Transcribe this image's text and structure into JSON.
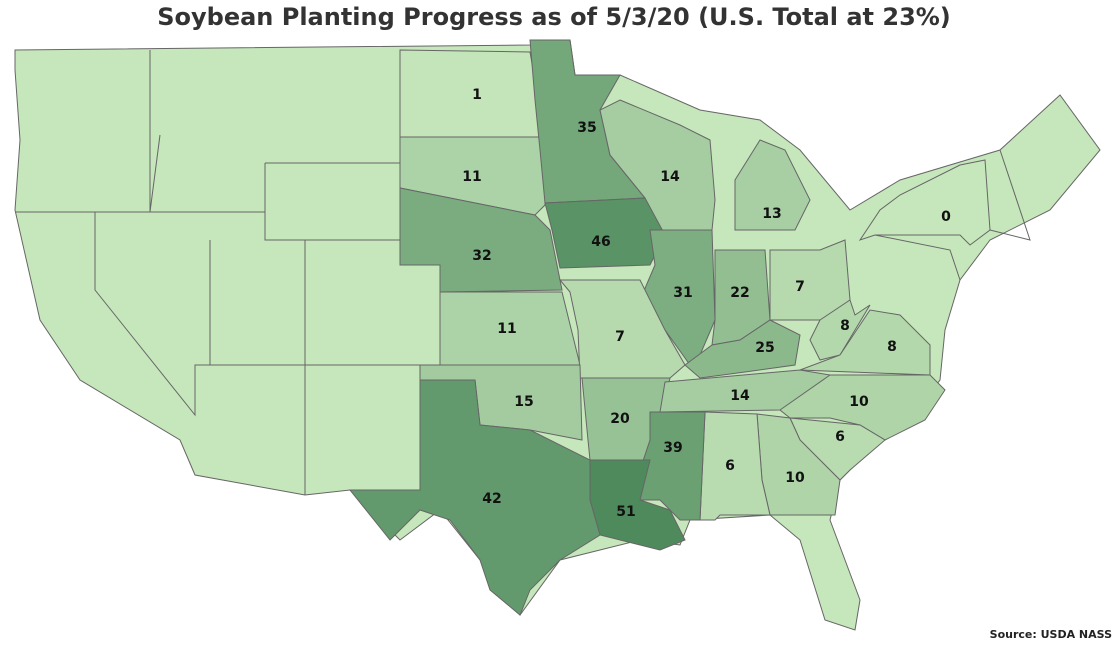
{
  "title": "Soybean Planting Progress as of 5/3/20 (U.S. Total at 23%)",
  "values": [
    1,
    11,
    35,
    14,
    13,
    46,
    32,
    31,
    22,
    7,
    11,
    7,
    25,
    8,
    8,
    15,
    20,
    14,
    10,
    6,
    10,
    6,
    39,
    51,
    42,
    0
  ],
  "source": "Source: USDA NASS"
}
